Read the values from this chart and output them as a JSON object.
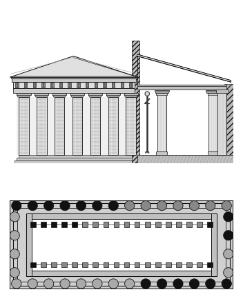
{
  "fig_width": 3.52,
  "fig_height": 4.4,
  "dpi": 100,
  "lc": "#111111",
  "white": "#ffffff",
  "light_gray": "#cccccc",
  "mid_gray": "#999999",
  "dark_gray": "#555555",
  "hatch_gray": "#aaaaaa",
  "black": "#111111",
  "bg_white": "#fafafa"
}
